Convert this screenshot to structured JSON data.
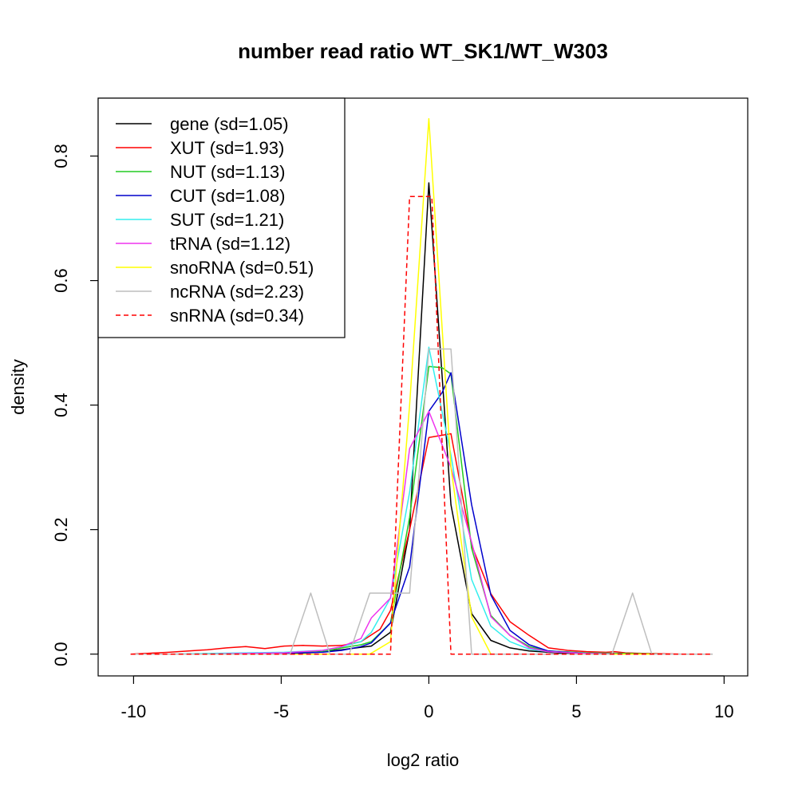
{
  "chart_data": {
    "type": "line",
    "title": "number read ratio WT_SK1/WT_W303",
    "xlabel": "log2 ratio",
    "ylabel": "density",
    "xlim": [
      -11.2,
      10.8
    ],
    "ylim": [
      -0.035,
      0.893
    ],
    "xticks": [
      -10,
      -5,
      0,
      5,
      10
    ],
    "xtick_labels": [
      "-10",
      "-5",
      "0",
      "5",
      "10"
    ],
    "yticks": [
      0.0,
      0.2,
      0.4,
      0.6,
      0.8
    ],
    "ytick_labels": [
      "0.0",
      "0.2",
      "0.4",
      "0.6",
      "0.8"
    ],
    "grid": false,
    "legend_position": "top-left",
    "series": [
      {
        "name": "gene (sd=1.05)",
        "color": "#000000",
        "dash": "solid",
        "x": [
          -10.1,
          -9.45,
          -8.8,
          -8.15,
          -7.5,
          -6.85,
          -6.2,
          -5.55,
          -4.9,
          -4.25,
          -3.6,
          -2.95,
          -2.3,
          -1.95,
          -1.3,
          -0.65,
          0.0,
          0.75,
          1.45,
          2.1,
          2.75,
          3.4,
          4.05,
          4.7,
          5.35,
          6.0,
          6.65,
          7.3,
          7.95,
          8.6,
          9.25,
          9.6
        ],
        "y": [
          0.0,
          0.0,
          0.0,
          0.0,
          0.0,
          0.0,
          0.0,
          0.0,
          0.001,
          0.002,
          0.004,
          0.007,
          0.011,
          0.013,
          0.035,
          0.2,
          0.757,
          0.24,
          0.065,
          0.022,
          0.01,
          0.005,
          0.003,
          0.001,
          0.001,
          0.0,
          0.0,
          0.0,
          0.0,
          0.0,
          0.0,
          0.0
        ]
      },
      {
        "name": "XUT (sd=1.93)",
        "color": "#ff0000",
        "dash": "solid",
        "x": [
          -10.1,
          -8.8,
          -7.5,
          -6.85,
          -6.2,
          -5.55,
          -4.9,
          -4.25,
          -3.6,
          -2.95,
          -2.3,
          -1.65,
          -1.3,
          -0.65,
          0.0,
          0.75,
          1.45,
          2.1,
          2.75,
          3.4,
          4.05,
          4.7,
          5.35,
          6.0,
          6.3,
          6.65,
          7.3,
          8.6,
          9.6
        ],
        "y": [
          0.0,
          0.003,
          0.007,
          0.01,
          0.012,
          0.009,
          0.013,
          0.014,
          0.013,
          0.014,
          0.02,
          0.04,
          0.07,
          0.2,
          0.348,
          0.354,
          0.175,
          0.097,
          0.052,
          0.03,
          0.01,
          0.006,
          0.004,
          0.003,
          0.004,
          0.002,
          0.001,
          0.0,
          0.0
        ]
      },
      {
        "name": "NUT (sd=1.13)",
        "color": "#22cc22",
        "dash": "solid",
        "x": [
          -10.1,
          -8.8,
          -7.5,
          -6.2,
          -4.9,
          -3.6,
          -2.95,
          -2.3,
          -1.95,
          -1.3,
          -0.65,
          0.0,
          0.45,
          0.75,
          1.45,
          2.1,
          2.75,
          3.4,
          4.05,
          5.35,
          6.65,
          7.95,
          9.6
        ],
        "y": [
          0.0,
          0.0,
          0.0,
          0.0,
          0.001,
          0.004,
          0.01,
          0.015,
          0.02,
          0.05,
          0.22,
          0.462,
          0.46,
          0.45,
          0.17,
          0.062,
          0.03,
          0.012,
          0.005,
          0.002,
          0.001,
          0.0,
          0.0
        ]
      },
      {
        "name": "CUT (sd=1.08)",
        "color": "#0000cc",
        "dash": "solid",
        "x": [
          -10.1,
          -8.8,
          -7.5,
          -6.2,
          -4.9,
          -3.6,
          -2.95,
          -2.3,
          -1.95,
          -1.3,
          -0.65,
          0.0,
          0.45,
          0.75,
          1.45,
          2.1,
          2.75,
          3.4,
          4.05,
          5.35,
          6.65,
          7.95,
          9.6
        ],
        "y": [
          0.0,
          0.0,
          0.0,
          0.0,
          0.001,
          0.003,
          0.006,
          0.012,
          0.018,
          0.05,
          0.14,
          0.39,
          0.42,
          0.452,
          0.24,
          0.095,
          0.038,
          0.015,
          0.005,
          0.001,
          0.0,
          0.0,
          0.0
        ]
      },
      {
        "name": "SUT (sd=1.21)",
        "color": "#33eeee",
        "dash": "solid",
        "x": [
          -10.1,
          -8.8,
          -7.5,
          -6.2,
          -4.9,
          -3.6,
          -2.95,
          -2.3,
          -1.95,
          -1.3,
          -0.65,
          0.0,
          0.75,
          1.45,
          2.1,
          2.75,
          3.4,
          4.05,
          5.35,
          6.65,
          7.95,
          9.6
        ],
        "y": [
          0.0,
          0.0,
          0.001,
          0.002,
          0.003,
          0.006,
          0.012,
          0.02,
          0.035,
          0.09,
          0.26,
          0.493,
          0.32,
          0.12,
          0.045,
          0.02,
          0.008,
          0.004,
          0.001,
          0.0,
          0.0,
          0.0
        ]
      },
      {
        "name": "tRNA (sd=1.12)",
        "color": "#ee33ee",
        "dash": "solid",
        "x": [
          -10.1,
          -8.8,
          -7.5,
          -6.2,
          -4.9,
          -3.6,
          -2.95,
          -2.3,
          -1.95,
          -1.3,
          -0.65,
          0.0,
          0.75,
          1.45,
          2.1,
          2.75,
          3.4,
          4.05,
          5.35,
          6.65,
          7.95,
          9.6
        ],
        "y": [
          0.0,
          0.0,
          0.0,
          0.001,
          0.002,
          0.006,
          0.012,
          0.025,
          0.058,
          0.09,
          0.33,
          0.39,
          0.3,
          0.18,
          0.06,
          0.03,
          0.01,
          0.004,
          0.001,
          0.0,
          0.0,
          0.0
        ]
      },
      {
        "name": "snoRNA (sd=0.51)",
        "color": "#ffff00",
        "dash": "solid",
        "x": [
          -10.1,
          -2.0,
          -1.3,
          -0.65,
          0.0,
          0.75,
          1.45,
          2.1,
          9.6
        ],
        "y": [
          0.0,
          0.0,
          0.02,
          0.4,
          0.86,
          0.3,
          0.06,
          0.0,
          0.0
        ]
      },
      {
        "name": "ncRNA (sd=2.23)",
        "color": "#bebebe",
        "dash": "solid",
        "x": [
          -10.1,
          -4.7,
          -4.0,
          -3.35,
          -2.7,
          -2.0,
          -0.65,
          -0.65,
          0.0,
          0.75,
          1.45,
          6.2,
          6.9,
          7.55,
          9.6
        ],
        "y": [
          0.0,
          0.0,
          0.098,
          0.0,
          0.0,
          0.098,
          0.098,
          0.098,
          0.49,
          0.49,
          0.0,
          0.0,
          0.098,
          0.0,
          0.0
        ]
      },
      {
        "name": "snRNA (sd=0.34)",
        "color": "#ff0000",
        "dash": "dashed",
        "x": [
          -10.1,
          -1.3,
          -0.65,
          0.1,
          0.75,
          9.6
        ],
        "y": [
          0.0,
          0.0,
          0.735,
          0.735,
          0.0,
          0.0
        ]
      }
    ]
  }
}
